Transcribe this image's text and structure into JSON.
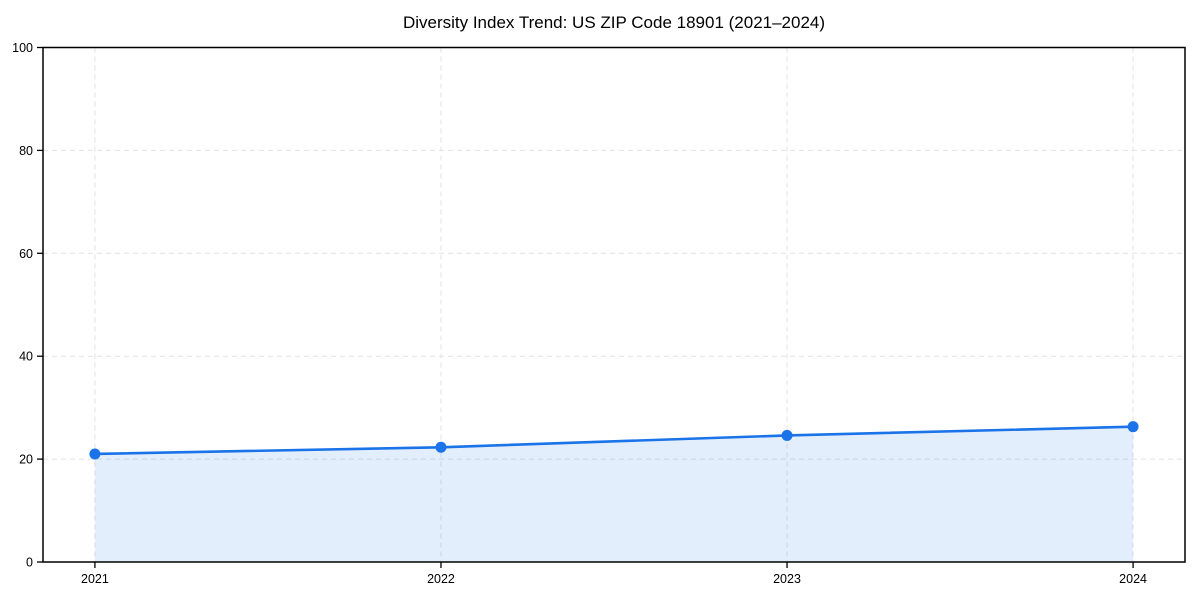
{
  "chart_data": {
    "type": "area",
    "title": "Diversity Index Trend: US ZIP Code 18901 (2021–2024)",
    "series_name": "Diversity Index",
    "x": [
      2021,
      2022,
      2023,
      2024
    ],
    "values": [
      21.0,
      22.3,
      24.6,
      26.3
    ],
    "xlabel": "",
    "ylabel": "",
    "ylim": [
      0,
      100
    ],
    "yticks": [
      0,
      20,
      40,
      60,
      80,
      100
    ],
    "xticks": [
      2021,
      2022,
      2023,
      2024
    ],
    "grid": true,
    "grid_style": "dashed",
    "legend_position": "none",
    "colors": {
      "line": "#1a73e8",
      "marker": "#1a73e8",
      "fill": "rgba(26,115,232,0.12)",
      "grid": "#e2e2e2",
      "spine": "#000000",
      "text": "#000000",
      "background": "#ffffff"
    }
  }
}
